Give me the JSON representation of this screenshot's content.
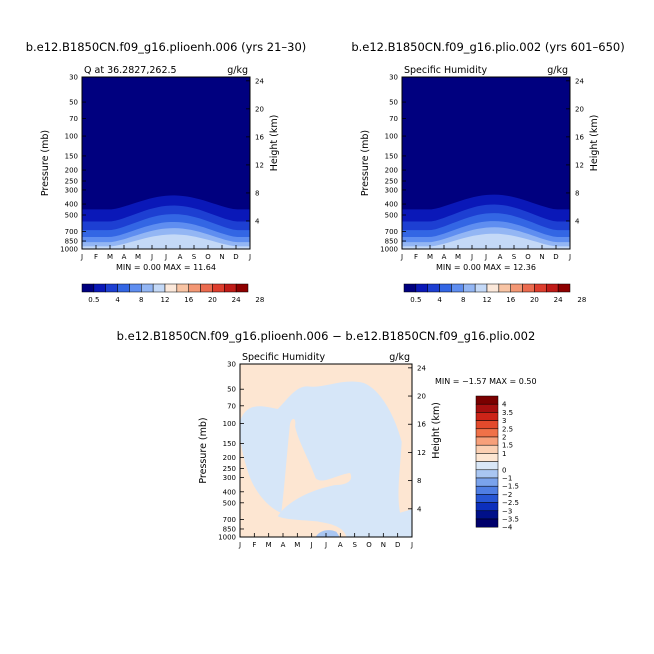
{
  "chart_data": [
    {
      "type": "contour",
      "title": "b.e12.B1850CN.f09_g16.plioenh.006 (yrs 21–30)",
      "subtitle_left": "Q at 36.2827,262.5",
      "subtitle_right": "g/kg",
      "ylabel": "Pressure (mb)",
      "y2label": "Height (km)",
      "min_text": "MIN =   0.00  MAX =  11.64",
      "min": 0.0,
      "max": 11.64,
      "months": [
        "J",
        "F",
        "M",
        "A",
        "M",
        "J",
        "J",
        "A",
        "S",
        "O",
        "N",
        "D",
        "J"
      ],
      "pressure_ticks": [
        30,
        50,
        70,
        100,
        150,
        200,
        250,
        300,
        400,
        500,
        700,
        850,
        1000
      ],
      "height_ticks": [
        24,
        20,
        16,
        12,
        8,
        4
      ],
      "colorbar_labels": [
        "0.5",
        "4",
        "8",
        "12",
        "16",
        "20",
        "24",
        "28"
      ]
    },
    {
      "type": "contour",
      "title": "b.e12.B1850CN.f09_g16.plio.002 (yrs 601–650)",
      "subtitle_left": "Specific Humidity",
      "subtitle_right": "g/kg",
      "ylabel": "Pressure (mb)",
      "y2label": "Height (km)",
      "min_text": "MIN =   0.00  MAX =  12.36",
      "min": 0.0,
      "max": 12.36,
      "months": [
        "J",
        "F",
        "M",
        "A",
        "M",
        "J",
        "J",
        "A",
        "S",
        "O",
        "N",
        "D",
        "J"
      ],
      "pressure_ticks": [
        30,
        50,
        70,
        100,
        150,
        200,
        250,
        300,
        400,
        500,
        700,
        850,
        1000
      ],
      "height_ticks": [
        24,
        20,
        16,
        12,
        8,
        4
      ],
      "colorbar_labels": [
        "0.5",
        "4",
        "8",
        "12",
        "16",
        "20",
        "24",
        "28"
      ]
    },
    {
      "type": "contour",
      "title": "b.e12.B1850CN.f09_g16.plioenh.006 − b.e12.B1850CN.f09_g16.plio.002",
      "subtitle_left": "Specific Humidity",
      "subtitle_right": "g/kg",
      "ylabel": "Pressure (mb)",
      "y2label": "Height (km)",
      "min_text": "MIN = −1.57  MAX =   0.50",
      "min": -1.57,
      "max": 0.5,
      "months": [
        "J",
        "F",
        "M",
        "A",
        "M",
        "J",
        "J",
        "A",
        "S",
        "O",
        "N",
        "D",
        "J"
      ],
      "pressure_ticks": [
        30,
        50,
        70,
        100,
        150,
        200,
        250,
        300,
        400,
        500,
        700,
        850,
        1000
      ],
      "height_ticks": [
        24,
        20,
        16,
        12,
        8,
        4
      ],
      "colorbar_labels": [
        "4",
        "3.5",
        "3",
        "2.5",
        "2",
        "1.5",
        "1",
        "0",
        "−1",
        "−1.5",
        "−2",
        "−2.5",
        "−3",
        "−3.5",
        "−4"
      ]
    }
  ],
  "colors": {
    "abs_scale": [
      "#00007f",
      "#0a18b8",
      "#1d3fd2",
      "#3366e4",
      "#5f8ef0",
      "#93b6f4",
      "#c4d9f7",
      "#fbe8da",
      "#f8c4a4",
      "#f39774",
      "#eb6b4f",
      "#dd3d2d",
      "#c01b17",
      "#8e0000"
    ],
    "diff_scale": [
      "#7a0000",
      "#a50f0f",
      "#cc2418",
      "#e34a2c",
      "#f07148",
      "#f7a07a",
      "#fbd0b3",
      "#fde6d2",
      "#d9e7f7",
      "#a9c6f2",
      "#7aa3ec",
      "#4f7ee3",
      "#2756d4",
      "#0c2fbc",
      "#001089",
      "#00006b"
    ],
    "plot_bg_deep": "#00007f",
    "diff_pos": "#fde6d2",
    "diff_neg": "#d6e6f8",
    "diff_neg2": "#a9c6f2"
  }
}
